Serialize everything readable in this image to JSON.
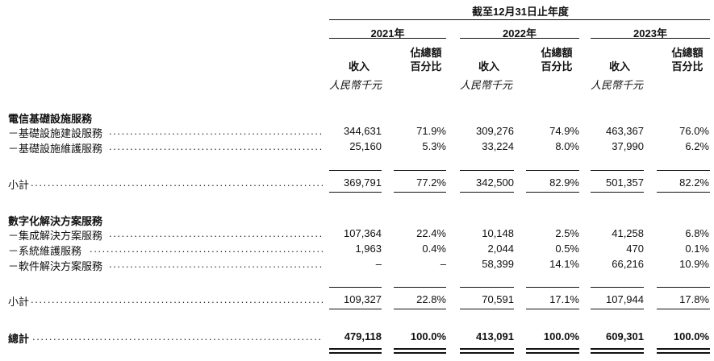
{
  "header": {
    "period": "截至12月31日止年度",
    "years": [
      "2021年",
      "2022年",
      "2023年"
    ],
    "revenue_label": "收入",
    "pct_label_line1": "佔總額",
    "pct_label_line2": "百分比",
    "unit": "人民幣千元"
  },
  "sections": [
    {
      "title": "電信基礎設施服務",
      "rows": [
        {
          "label": "－基礎設施建設服務",
          "values": [
            "344,631",
            "71.9%",
            "309,276",
            "74.9%",
            "463,367",
            "76.0%"
          ]
        },
        {
          "label": "－基礎設施維護服務",
          "values": [
            "25,160",
            "5.3%",
            "33,224",
            "8.0%",
            "37,990",
            "6.2%"
          ]
        }
      ],
      "subtotal": {
        "label": "小計",
        "values": [
          "369,791",
          "77.2%",
          "342,500",
          "82.9%",
          "501,357",
          "82.2%"
        ]
      }
    },
    {
      "title": "數字化解決方案服務",
      "rows": [
        {
          "label": "－集成解決方案服務",
          "values": [
            "107,364",
            "22.4%",
            "10,148",
            "2.5%",
            "41,258",
            "6.8%"
          ]
        },
        {
          "label": "－系統維護服務",
          "values": [
            "1,963",
            "0.4%",
            "2,044",
            "0.5%",
            "470",
            "0.1%"
          ]
        },
        {
          "label": "－軟件解決方案服務",
          "values": [
            "–",
            "–",
            "58,399",
            "14.1%",
            "66,216",
            "10.9%"
          ]
        }
      ],
      "subtotal": {
        "label": "小計",
        "values": [
          "109,327",
          "22.8%",
          "70,591",
          "17.1%",
          "107,944",
          "17.8%"
        ]
      }
    }
  ],
  "total": {
    "label": "總計",
    "values": [
      "479,118",
      "100.0%",
      "413,091",
      "100.0%",
      "609,301",
      "100.0%"
    ]
  }
}
